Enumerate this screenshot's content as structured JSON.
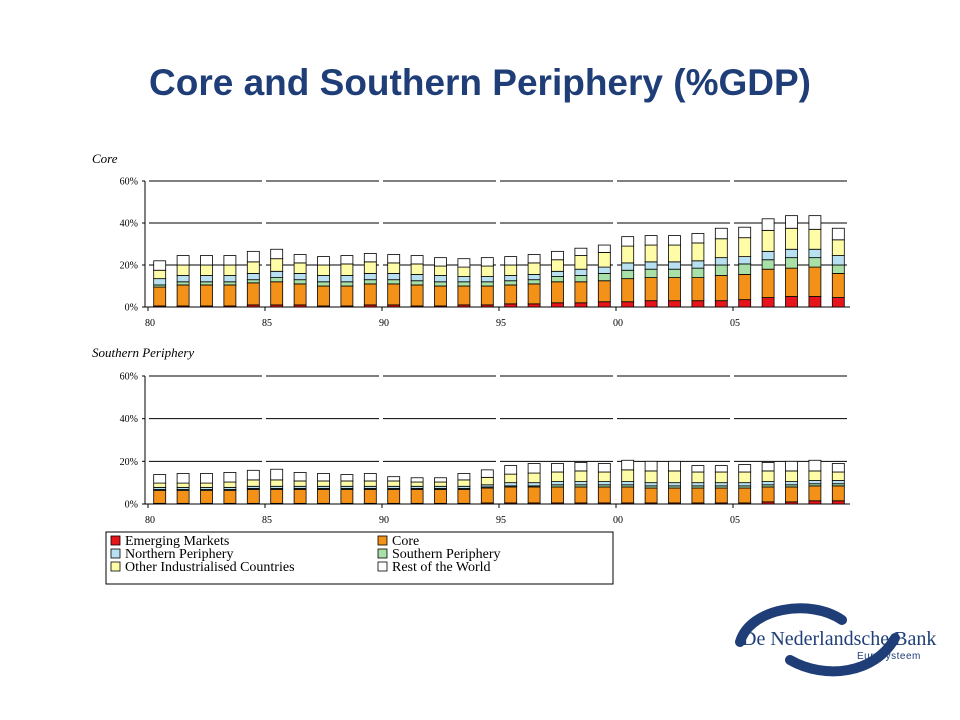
{
  "slide": {
    "title": "Core and Southern Periphery (%GDP)"
  },
  "chart_data": [
    {
      "type": "bar",
      "stacked": true,
      "panel_title": "Core",
      "ylim": [
        0,
        60
      ],
      "yticks": [
        "0%",
        "20%",
        "40%",
        "60%"
      ],
      "xtick_labels": [
        "80",
        "85",
        "90",
        "95",
        "00",
        "05"
      ],
      "categories": [
        1980,
        1981,
        1982,
        1983,
        1984,
        1985,
        1986,
        1987,
        1988,
        1989,
        1990,
        1991,
        1992,
        1993,
        1994,
        1995,
        1996,
        1997,
        1998,
        1999,
        2000,
        2001,
        2002,
        2003,
        2004,
        2005,
        2006,
        2007,
        2008,
        2009
      ],
      "series": [
        {
          "name": "Emerging Markets",
          "color": "#E8141B",
          "values": [
            0.5,
            0.5,
            0.5,
            0.5,
            1,
            1,
            1,
            0.5,
            0.5,
            1,
            1,
            0.5,
            0.5,
            1,
            1,
            1.5,
            1.5,
            2,
            2,
            2.5,
            2.5,
            3,
            3,
            3,
            3,
            3.5,
            4.5,
            5,
            5,
            4.5
          ]
        },
        {
          "name": "Core",
          "color": "#F39118",
          "values": [
            9,
            10,
            10,
            10,
            10.5,
            11,
            10,
            9.5,
            9.5,
            10,
            10,
            10,
            9.5,
            9,
            9,
            9,
            9.5,
            10,
            10,
            10,
            11,
            11,
            11,
            11,
            12,
            12,
            13.5,
            13.5,
            14,
            11.5
          ]
        },
        {
          "name": "Southern Periphery",
          "color": "#A8E0A8",
          "values": [
            1,
            1.5,
            1.5,
            1.5,
            1.5,
            2,
            2,
            2,
            2,
            2,
            2,
            2,
            2,
            2,
            2,
            2,
            2,
            2.5,
            3,
            3.5,
            4,
            4,
            4,
            4.5,
            5,
            5,
            4.5,
            5,
            4.5,
            4
          ]
        },
        {
          "name": "Northern Periphery",
          "color": "#B8E0F0",
          "values": [
            3,
            3,
            3,
            3,
            3,
            3,
            3,
            3,
            3,
            3,
            3,
            3,
            3,
            2.5,
            2.5,
            2.5,
            2.5,
            2.5,
            3,
            3,
            3.5,
            3.5,
            3.5,
            3.5,
            3.5,
            3.5,
            4,
            4,
            4,
            4.5
          ]
        },
        {
          "name": "Other Industrialised Countries",
          "color": "#FFFCA8",
          "values": [
            4,
            5,
            5,
            5,
            5.5,
            6,
            5,
            5,
            5.5,
            5.5,
            5,
            5,
            4.5,
            4.5,
            5,
            5,
            5.5,
            5.5,
            6.5,
            7,
            8,
            8,
            8,
            8.5,
            9,
            9,
            10,
            10,
            9.5,
            7.5
          ]
        },
        {
          "name": "Rest of the World",
          "color": "#FFFFFF",
          "values": [
            4.5,
            4.5,
            4.5,
            4.5,
            5,
            4.5,
            4,
            4,
            4,
            4,
            4,
            4,
            4,
            4,
            4,
            4,
            4,
            4,
            3.5,
            3.5,
            4.5,
            4.5,
            4.5,
            4.5,
            5,
            5,
            5.5,
            6,
            6.5,
            5.5
          ]
        }
      ]
    },
    {
      "type": "bar",
      "stacked": true,
      "panel_title": "Southern Periphery",
      "ylim": [
        0,
        60
      ],
      "yticks": [
        "0%",
        "20%",
        "40%",
        "60%"
      ],
      "xtick_labels": [
        "80",
        "85",
        "90",
        "95",
        "00",
        "05"
      ],
      "categories": [
        1980,
        1981,
        1982,
        1983,
        1984,
        1985,
        1986,
        1987,
        1988,
        1989,
        1990,
        1991,
        1992,
        1993,
        1994,
        1995,
        1996,
        1997,
        1998,
        1999,
        2000,
        2001,
        2002,
        2003,
        2004,
        2005,
        2006,
        2007,
        2008,
        2009
      ],
      "series": [
        {
          "name": "Emerging Markets",
          "color": "#E8141B",
          "values": [
            0.3,
            0.3,
            0.3,
            0.3,
            0.3,
            0.3,
            0.3,
            0.3,
            0.3,
            0.3,
            0.3,
            0.3,
            0.3,
            0.3,
            0.5,
            0.5,
            0.5,
            0.5,
            0.5,
            0.5,
            0.5,
            0.5,
            0.5,
            0.5,
            0.5,
            0.5,
            1,
            1,
            1.5,
            1.5
          ]
        },
        {
          "name": "Core",
          "color": "#F39118",
          "values": [
            6,
            6,
            6,
            6,
            6.5,
            6.5,
            6.5,
            6.5,
            6.5,
            6.5,
            6.5,
            6.5,
            6.5,
            6.5,
            7,
            7.5,
            7.5,
            7.5,
            7.5,
            7.5,
            7.5,
            7,
            7,
            7,
            7,
            7,
            7,
            7,
            7,
            7
          ]
        },
        {
          "name": "Southern Periphery",
          "color": "#A8E0A8",
          "values": [
            0.5,
            0.5,
            0.5,
            0.5,
            0.5,
            0.5,
            0.5,
            0.5,
            0.5,
            0.5,
            0.5,
            0.5,
            0.5,
            0.5,
            0.5,
            0.5,
            0.5,
            1,
            1,
            1,
            1,
            1,
            1,
            1,
            1,
            1,
            1,
            1,
            1,
            1
          ]
        },
        {
          "name": "Northern Periphery",
          "color": "#B8E0F0",
          "values": [
            1,
            1,
            1,
            1,
            1,
            1,
            1,
            1,
            1,
            1,
            1,
            1,
            1,
            1,
            1,
            1.5,
            1.5,
            1.5,
            1.5,
            1.5,
            1.5,
            1.5,
            1.5,
            1.5,
            1.5,
            1.5,
            1.5,
            1.5,
            1.5,
            1.5
          ]
        },
        {
          "name": "Other Industrialised Countries",
          "color": "#FFFCA8",
          "values": [
            2,
            2,
            2,
            2.5,
            3,
            3,
            2.5,
            2.5,
            2.5,
            2.5,
            2.5,
            2,
            2,
            3,
            3.5,
            4,
            4.5,
            4.5,
            5,
            4.5,
            5.5,
            5.5,
            5.5,
            5,
            5,
            5,
            5,
            5,
            4.5,
            4
          ]
        },
        {
          "name": "Rest of the World",
          "color": "#FFFFFF",
          "values": [
            4,
            4.5,
            4.5,
            4.5,
            4.5,
            5,
            4,
            3.5,
            3,
            3.5,
            2,
            2,
            2,
            3,
            3.5,
            4,
            4.5,
            4,
            4,
            4,
            4.5,
            4.5,
            4.5,
            3,
            3,
            3.5,
            4,
            4.5,
            5,
            4
          ]
        }
      ]
    }
  ],
  "legend": {
    "items": [
      {
        "label": "Emerging Markets",
        "color": "#E8141B"
      },
      {
        "label": "Core",
        "color": "#F39118"
      },
      {
        "label": "Northern Periphery",
        "color": "#B8E0F0"
      },
      {
        "label": "Southern Periphery",
        "color": "#A8E0A8"
      },
      {
        "label": "Other Industrialised Countries",
        "color": "#FFFCA8"
      },
      {
        "label": "Rest of the World",
        "color": "#FFFFFF"
      }
    ]
  },
  "logo": {
    "name": "De Nederlandsche Bank",
    "subtitle": "Eurosysteem",
    "color": "#1F3E78"
  }
}
